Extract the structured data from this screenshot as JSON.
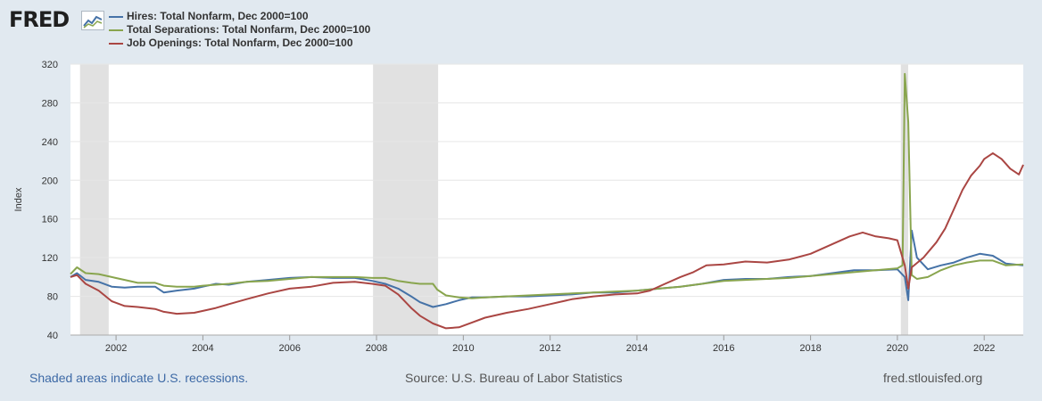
{
  "header": {
    "logo_text": "FRED",
    "logo_icon": "line-chart-icon"
  },
  "footer": {
    "recession_note": "Shaded areas indicate U.S. recessions.",
    "source": "Source: U.S. Bureau of Labor Statistics",
    "site": "fred.stlouisfed.org"
  },
  "colors": {
    "hires": "#4572a7",
    "separations": "#89a54e",
    "openings": "#aa4643",
    "recession": "#e1e1e1",
    "grid": "#e6e6e6",
    "link": "#3e6aa6"
  },
  "chart_data": {
    "type": "line",
    "title": "",
    "xlabel": "",
    "ylabel": "Index",
    "ylim": [
      40,
      320
    ],
    "yticks": [
      40,
      80,
      120,
      160,
      200,
      240,
      280,
      320
    ],
    "xlim": [
      2000.95,
      2022.9
    ],
    "xticks": [
      2002,
      2004,
      2006,
      2008,
      2010,
      2012,
      2014,
      2016,
      2018,
      2020,
      2022
    ],
    "recessions": [
      [
        2001.17,
        2001.83
      ],
      [
        2007.92,
        2009.42
      ],
      [
        2020.08,
        2020.25
      ]
    ],
    "series": [
      {
        "name": "Hires: Total Nonfarm, Dec 2000=100",
        "color": "#4572a7",
        "x": [
          2000.95,
          2001.1,
          2001.3,
          2001.6,
          2001.9,
          2002.2,
          2002.5,
          2002.9,
          2003.1,
          2003.4,
          2003.8,
          2004.0,
          2004.3,
          2004.6,
          2005.0,
          2005.5,
          2006.0,
          2006.5,
          2007.0,
          2007.5,
          2007.9,
          2008.2,
          2008.5,
          2008.8,
          2009.0,
          2009.3,
          2009.6,
          2009.9,
          2010.2,
          2010.5,
          2011.0,
          2011.5,
          2012.0,
          2012.5,
          2013.0,
          2013.5,
          2014.0,
          2014.5,
          2015.0,
          2015.5,
          2016.0,
          2016.5,
          2017.0,
          2017.5,
          2018.0,
          2018.5,
          2019.0,
          2019.5,
          2020.0,
          2020.17,
          2020.25,
          2020.33,
          2020.45,
          2020.7,
          2021.0,
          2021.3,
          2021.6,
          2021.9,
          2022.2,
          2022.5,
          2022.9
        ],
        "values": [
          100,
          104,
          97,
          95,
          90,
          89,
          90,
          90,
          84,
          86,
          88,
          90,
          93,
          92,
          95,
          97,
          99,
          100,
          99,
          99,
          96,
          93,
          88,
          80,
          74,
          69,
          72,
          76,
          79,
          79,
          80,
          80,
          81,
          82,
          84,
          84,
          86,
          88,
          90,
          93,
          97,
          98,
          98,
          100,
          101,
          104,
          107,
          107,
          108,
          100,
          76,
          148,
          120,
          108,
          112,
          115,
          120,
          124,
          122,
          114,
          112
        ]
      },
      {
        "name": "Total Separations: Total Nonfarm, Dec 2000=100",
        "color": "#89a54e",
        "x": [
          2000.95,
          2001.1,
          2001.3,
          2001.6,
          2001.9,
          2002.2,
          2002.5,
          2002.9,
          2003.1,
          2003.4,
          2003.8,
          2004.0,
          2004.3,
          2004.6,
          2005.0,
          2005.5,
          2006.0,
          2006.5,
          2007.0,
          2007.5,
          2007.9,
          2008.2,
          2008.5,
          2008.8,
          2009.0,
          2009.3,
          2009.4,
          2009.6,
          2009.9,
          2010.2,
          2010.5,
          2011.0,
          2011.5,
          2012.0,
          2012.5,
          2013.0,
          2013.5,
          2014.0,
          2014.5,
          2015.0,
          2015.5,
          2016.0,
          2016.5,
          2017.0,
          2017.5,
          2018.0,
          2018.5,
          2019.0,
          2019.5,
          2020.0,
          2020.12,
          2020.17,
          2020.25,
          2020.33,
          2020.45,
          2020.7,
          2021.0,
          2021.3,
          2021.6,
          2021.9,
          2022.2,
          2022.5,
          2022.9
        ],
        "values": [
          103,
          110,
          104,
          103,
          100,
          97,
          94,
          94,
          91,
          90,
          90,
          91,
          92,
          93,
          95,
          96,
          98,
          100,
          100,
          100,
          99,
          99,
          96,
          94,
          93,
          93,
          87,
          81,
          79,
          78,
          79,
          80,
          81,
          82,
          83,
          84,
          85,
          86,
          88,
          90,
          93,
          96,
          97,
          98,
          99,
          101,
          103,
          105,
          107,
          109,
          112,
          310,
          260,
          102,
          98,
          100,
          107,
          112,
          115,
          117,
          117,
          112,
          113
        ]
      },
      {
        "name": "Job Openings: Total Nonfarm, Dec 2000=100",
        "color": "#aa4643",
        "x": [
          2000.95,
          2001.1,
          2001.3,
          2001.6,
          2001.9,
          2002.2,
          2002.5,
          2002.9,
          2003.1,
          2003.4,
          2003.8,
          2004.0,
          2004.3,
          2004.6,
          2005.0,
          2005.5,
          2006.0,
          2006.5,
          2007.0,
          2007.5,
          2007.9,
          2008.2,
          2008.5,
          2008.8,
          2009.0,
          2009.3,
          2009.6,
          2009.9,
          2010.2,
          2010.5,
          2011.0,
          2011.5,
          2012.0,
          2012.5,
          2013.0,
          2013.5,
          2014.0,
          2014.3,
          2014.6,
          2015.0,
          2015.3,
          2015.6,
          2016.0,
          2016.5,
          2017.0,
          2017.5,
          2018.0,
          2018.3,
          2018.6,
          2018.9,
          2019.2,
          2019.5,
          2019.8,
          2020.0,
          2020.17,
          2020.25,
          2020.33,
          2020.6,
          2020.9,
          2021.1,
          2021.3,
          2021.5,
          2021.7,
          2021.9,
          2022.0,
          2022.2,
          2022.4,
          2022.6,
          2022.8,
          2022.9
        ],
        "values": [
          100,
          102,
          93,
          86,
          75,
          70,
          69,
          67,
          64,
          62,
          63,
          65,
          68,
          72,
          77,
          83,
          88,
          90,
          94,
          95,
          93,
          91,
          82,
          68,
          60,
          52,
          47,
          48,
          53,
          58,
          63,
          67,
          72,
          77,
          80,
          82,
          83,
          86,
          92,
          100,
          105,
          112,
          113,
          116,
          115,
          118,
          124,
          130,
          136,
          142,
          146,
          142,
          140,
          138,
          112,
          88,
          110,
          120,
          136,
          150,
          170,
          190,
          205,
          215,
          222,
          228,
          222,
          212,
          206,
          216
        ]
      }
    ]
  }
}
